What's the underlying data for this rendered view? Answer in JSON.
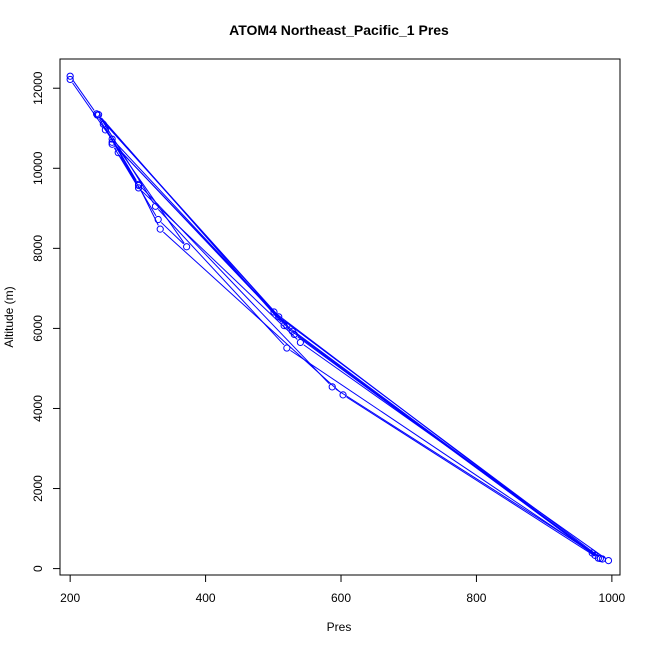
{
  "chart_data": {
    "type": "scatter",
    "title": "ATOM4 Northeast_Pacific_1 Pres",
    "xlabel": "Pres",
    "ylabel": "Altitude (m)",
    "xlim": [
      185,
      1012
    ],
    "ylim": [
      -160,
      12730
    ],
    "x_ticks": [
      200,
      400,
      600,
      800,
      1000
    ],
    "y_ticks": [
      0,
      2000,
      4000,
      6000,
      8000,
      10000,
      12000
    ],
    "grid": false,
    "legend": "none",
    "color": "#0000ff",
    "series": [
      {
        "points": [
          {
            "x": 995,
            "y": 200
          },
          {
            "x": 540,
            "y": 5650
          },
          {
            "x": 301,
            "y": 9510
          },
          {
            "x": 262,
            "y": 10600
          },
          {
            "x": 271,
            "y": 10390
          },
          {
            "x": 330,
            "y": 8720
          },
          {
            "x": 372,
            "y": 8040
          },
          {
            "x": 200,
            "y": 12220
          },
          {
            "x": 200,
            "y": 12300
          },
          {
            "x": 239,
            "y": 11360
          },
          {
            "x": 528,
            "y": 5930
          },
          {
            "x": 980,
            "y": 260
          },
          {
            "x": 603,
            "y": 4340
          },
          {
            "x": 333,
            "y": 8480
          },
          {
            "x": 301,
            "y": 9570
          },
          {
            "x": 240,
            "y": 11330
          },
          {
            "x": 508,
            "y": 6290
          },
          {
            "x": 986,
            "y": 240
          },
          {
            "x": 587,
            "y": 4540
          },
          {
            "x": 301,
            "y": 9600
          },
          {
            "x": 249,
            "y": 11100
          },
          {
            "x": 252,
            "y": 10960
          },
          {
            "x": 262,
            "y": 10730
          },
          {
            "x": 520,
            "y": 6060
          },
          {
            "x": 983,
            "y": 250
          },
          {
            "x": 520,
            "y": 5510
          },
          {
            "x": 326,
            "y": 9050
          },
          {
            "x": 242,
            "y": 11340
          },
          {
            "x": 516,
            "y": 6070
          },
          {
            "x": 971,
            "y": 390
          },
          {
            "x": 531,
            "y": 5850
          },
          {
            "x": 262,
            "y": 10650
          },
          {
            "x": 501,
            "y": 6410
          },
          {
            "x": 975,
            "y": 330
          }
        ]
      }
    ]
  }
}
